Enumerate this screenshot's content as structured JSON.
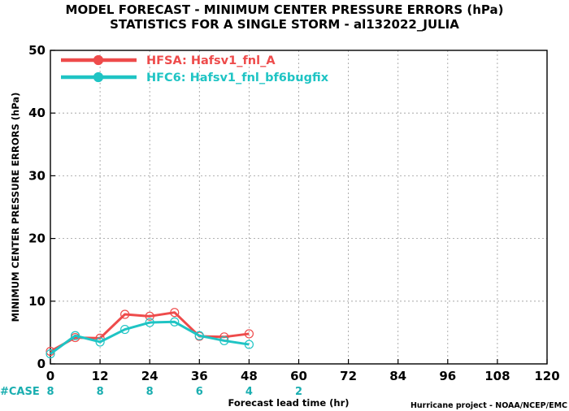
{
  "header": {
    "title_line1": "MODEL FORECAST - MINIMUM CENTER PRESSURE ERRORS (hPa)",
    "title_line2": "STATISTICS FOR A SINGLE STORM - al132022_JULIA"
  },
  "credit": "Hurricane project - NOAA/NCEP/EMC",
  "colors": {
    "series1": "#ee4b4b",
    "series2": "#1fc4c4",
    "case": "#1aaeb0",
    "grid": "#9a9a9a"
  },
  "chart_data": {
    "type": "line",
    "title": "MODEL FORECAST - MINIMUM CENTER PRESSURE ERRORS (hPa)",
    "subtitle": "STATISTICS FOR A SINGLE STORM - al132022_JULIA",
    "xlabel": "Forecast lead time (hr)",
    "ylabel": "MINIMUM CENTER PRESSURE ERRORS (hPa)",
    "xlim": [
      0,
      120
    ],
    "ylim": [
      0,
      50
    ],
    "xticks": [
      0,
      12,
      24,
      36,
      48,
      60,
      72,
      84,
      96,
      108,
      120
    ],
    "yticks": [
      0,
      10,
      20,
      30,
      40,
      50
    ],
    "grid": true,
    "legend_position": "top-left",
    "series": [
      {
        "name": "HFSA: Hafsv1_fnl_A",
        "color": "#ee4b4b",
        "x": [
          0,
          6,
          12,
          18,
          24,
          30,
          36,
          42,
          48
        ],
        "y": [
          2.0,
          4.2,
          4.1,
          7.9,
          7.6,
          8.2,
          4.4,
          4.3,
          4.8
        ]
      },
      {
        "name": "HFC6: Hafsv1_fnl_bf6bugfix",
        "color": "#1fc4c4",
        "x": [
          0,
          6,
          12,
          18,
          24,
          30,
          36,
          42,
          48
        ],
        "y": [
          1.6,
          4.5,
          3.5,
          5.5,
          6.6,
          6.7,
          4.5,
          3.7,
          3.1
        ]
      }
    ],
    "case_label": "#CASE",
    "cases": [
      {
        "x": 0,
        "label": "8"
      },
      {
        "x": 12,
        "label": "8"
      },
      {
        "x": 24,
        "label": "8"
      },
      {
        "x": 36,
        "label": "6"
      },
      {
        "x": 48,
        "label": "4"
      },
      {
        "x": 60,
        "label": "2"
      }
    ]
  }
}
